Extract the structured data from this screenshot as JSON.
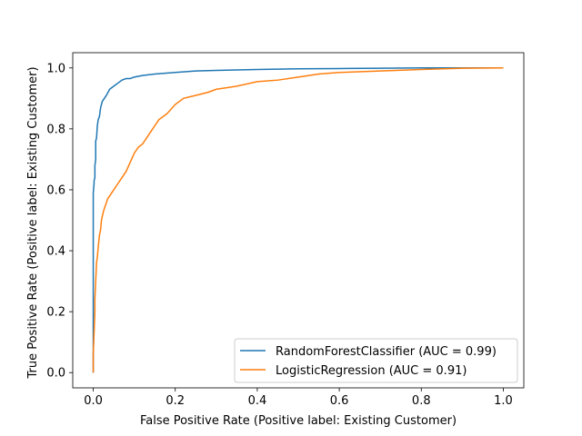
{
  "chart_data": {
    "type": "line",
    "title": "",
    "xlabel": "False Positive Rate (Positive label: Existing Customer)",
    "ylabel": "True Positive Rate (Positive label: Existing Customer)",
    "xlim": [
      -0.05,
      1.05
    ],
    "ylim": [
      -0.05,
      1.05
    ],
    "xticks": [
      0.0,
      0.2,
      0.4,
      0.6,
      0.8,
      1.0
    ],
    "yticks": [
      0.0,
      0.2,
      0.4,
      0.6,
      0.8,
      1.0
    ],
    "xtick_labels": [
      "0.0",
      "0.2",
      "0.4",
      "0.6",
      "0.8",
      "1.0"
    ],
    "ytick_labels": [
      "0.0",
      "0.2",
      "0.4",
      "0.6",
      "0.8",
      "1.0"
    ],
    "grid": false,
    "legend_position": "lower-right",
    "series": [
      {
        "name": "RandomForestClassifier (AUC = 0.99)",
        "color": "#1f77b4",
        "x": [
          0.0,
          0.0,
          0.002,
          0.002,
          0.004,
          0.004,
          0.006,
          0.006,
          0.008,
          0.01,
          0.012,
          0.015,
          0.018,
          0.022,
          0.027,
          0.032,
          0.04,
          0.05,
          0.06,
          0.07,
          0.08,
          0.09,
          0.1,
          0.12,
          0.15,
          0.2,
          0.25,
          0.3,
          0.4,
          0.5,
          0.6,
          0.7,
          0.8,
          0.9,
          1.0
        ],
        "y": [
          0.0,
          0.59,
          0.62,
          0.63,
          0.64,
          0.68,
          0.7,
          0.76,
          0.77,
          0.81,
          0.83,
          0.84,
          0.87,
          0.89,
          0.9,
          0.91,
          0.93,
          0.94,
          0.95,
          0.96,
          0.965,
          0.965,
          0.97,
          0.975,
          0.98,
          0.985,
          0.99,
          0.992,
          0.995,
          0.997,
          0.998,
          0.999,
          1.0,
          1.0,
          1.0
        ]
      },
      {
        "name": "LogisticRegression (AUC = 0.91)",
        "color": "#ff7f0e",
        "x": [
          0.0,
          0.0,
          0.002,
          0.004,
          0.004,
          0.006,
          0.008,
          0.01,
          0.012,
          0.015,
          0.018,
          0.02,
          0.025,
          0.03,
          0.035,
          0.04,
          0.05,
          0.06,
          0.07,
          0.08,
          0.09,
          0.1,
          0.11,
          0.12,
          0.13,
          0.14,
          0.15,
          0.16,
          0.18,
          0.2,
          0.22,
          0.25,
          0.28,
          0.3,
          0.35,
          0.4,
          0.45,
          0.5,
          0.55,
          0.6,
          0.7,
          0.8,
          0.9,
          1.0
        ],
        "y": [
          0.0,
          0.06,
          0.13,
          0.2,
          0.24,
          0.3,
          0.36,
          0.38,
          0.41,
          0.45,
          0.47,
          0.5,
          0.53,
          0.55,
          0.57,
          0.58,
          0.6,
          0.62,
          0.64,
          0.66,
          0.69,
          0.72,
          0.74,
          0.75,
          0.77,
          0.79,
          0.81,
          0.83,
          0.85,
          0.88,
          0.9,
          0.91,
          0.92,
          0.93,
          0.94,
          0.955,
          0.96,
          0.97,
          0.98,
          0.985,
          0.99,
          0.995,
          0.999,
          1.0
        ]
      }
    ]
  }
}
